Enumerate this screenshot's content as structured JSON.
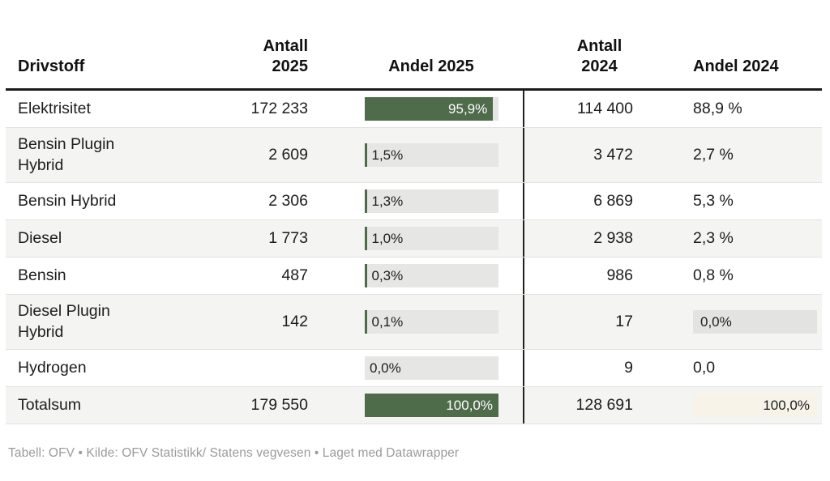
{
  "header": {
    "drivstoff": "Drivstoff",
    "antall_2025": "Antall\n2025",
    "andel_2025": "Andel 2025",
    "antall_2024": "Antall\n2024",
    "andel_2024": "Andel 2024"
  },
  "rows": [
    {
      "drivstoff": "Elektrisitet",
      "antall_2025": "172 233",
      "bar_2025": {
        "pct": 95.9,
        "label": "95,9%",
        "mode": "fill"
      },
      "antall_2024": "114 400",
      "andel_2024": {
        "label": "88,9 %",
        "box": "none"
      }
    },
    {
      "drivstoff": "Bensin Plugin Hybrid",
      "antall_2025": "2 609",
      "bar_2025": {
        "pct": 1.5,
        "label": "1,5%",
        "mode": "tick"
      },
      "antall_2024": "3 472",
      "andel_2024": {
        "label": "2,7 %",
        "box": "none"
      }
    },
    {
      "drivstoff": "Bensin Hybrid",
      "antall_2025": "2 306",
      "bar_2025": {
        "pct": 1.3,
        "label": "1,3%",
        "mode": "tick"
      },
      "antall_2024": "6 869",
      "andel_2024": {
        "label": "5,3 %",
        "box": "none"
      }
    },
    {
      "drivstoff": "Diesel",
      "antall_2025": "1 773",
      "bar_2025": {
        "pct": 1.0,
        "label": "1,0%",
        "mode": "tick"
      },
      "antall_2024": "2 938",
      "andel_2024": {
        "label": "2,3 %",
        "box": "none"
      }
    },
    {
      "drivstoff": "Bensin",
      "antall_2025": "487",
      "bar_2025": {
        "pct": 0.3,
        "label": "0,3%",
        "mode": "tick"
      },
      "antall_2024": "986",
      "andel_2024": {
        "label": "0,8 %",
        "box": "none"
      }
    },
    {
      "drivstoff": "Diesel Plugin Hybrid",
      "antall_2025": "142",
      "bar_2025": {
        "pct": 0.1,
        "label": "0,1%",
        "mode": "tick"
      },
      "antall_2024": "17",
      "andel_2024": {
        "label": "0,0%",
        "box": "gray"
      }
    },
    {
      "drivstoff": "Hydrogen",
      "antall_2025": "",
      "bar_2025": {
        "pct": 0,
        "label": "0,0%",
        "mode": "none"
      },
      "antall_2024": "9",
      "andel_2024": {
        "label": "0,0",
        "box": "none"
      }
    },
    {
      "drivstoff": "Totalsum",
      "antall_2025": "179 550",
      "bar_2025": {
        "pct": 100,
        "label": "100,0%",
        "mode": "fill"
      },
      "antall_2024": "128 691",
      "andel_2024": {
        "label": "100,0%",
        "box": "cream"
      }
    }
  ],
  "footer": {
    "text": "Tabell: OFV • Kilde: OFV Statistikk/ Statens vegvesen • Laget med Datawrapper"
  },
  "colors": {
    "bar_green": "#4e6b4a",
    "bar_track": "#e6e6e4",
    "row_stripe": "#f4f4f2",
    "gray_box": "#e3e3e1",
    "cream_box": "#f7f3e9",
    "header_rule": "#1a1a1a",
    "footer_text": "#9b9b9b"
  },
  "chart_data": {
    "type": "table",
    "title": "",
    "columns": [
      "Drivstoff",
      "Antall 2025",
      "Andel 2025",
      "Antall 2024",
      "Andel 2024"
    ],
    "rows": [
      [
        "Elektrisitet",
        "172 233",
        "95,9%",
        "114 400",
        "88,9 %"
      ],
      [
        "Bensin Plugin Hybrid",
        "2 609",
        "1,5%",
        "3 472",
        "2,7 %"
      ],
      [
        "Bensin Hybrid",
        "2 306",
        "1,3%",
        "6 869",
        "5,3 %"
      ],
      [
        "Diesel",
        "1 773",
        "1,0%",
        "2 938",
        "2,3 %"
      ],
      [
        "Bensin",
        "487",
        "0,3%",
        "986",
        "0,8 %"
      ],
      [
        "Diesel Plugin Hybrid",
        "142",
        "0,1%",
        "17",
        "0,0%"
      ],
      [
        "Hydrogen",
        "",
        "0,0%",
        "9",
        "0,0"
      ],
      [
        "Totalsum",
        "179 550",
        "100,0%",
        "128 691",
        "100,0%"
      ]
    ],
    "andel_2025_bar_pct": [
      95.9,
      1.5,
      1.3,
      1.0,
      0.3,
      0.1,
      0.0,
      100.0
    ],
    "bar_color": "#4e6b4a",
    "layout": "embedded horizontal bars in Andel 2025 column; black vertical divider between 2025 and 2024 column groups"
  }
}
